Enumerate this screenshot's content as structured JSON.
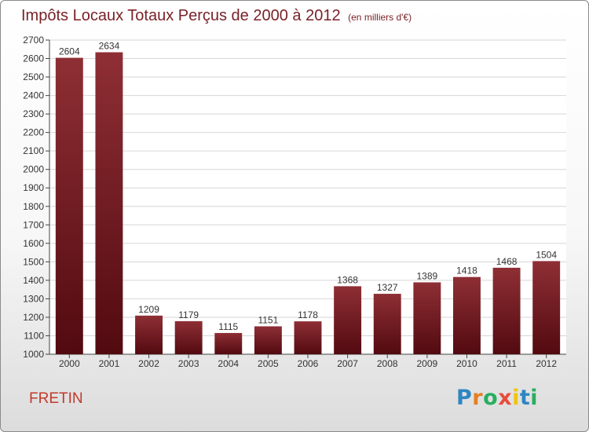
{
  "title": "Impôts Locaux Totaux Perçus de 2000 à 2012",
  "title_unit": "(en milliers d'€)",
  "city": "FRETIN",
  "logo": {
    "letters": [
      "P",
      "r",
      "o",
      "x",
      "i",
      "t",
      "i"
    ],
    "colors": [
      "#2e86c1",
      "#e67e22",
      "#27ae60",
      "#e74c3c",
      "#f1c40f",
      "#2e86c1",
      "#27ae60"
    ]
  },
  "colors": {
    "bar_top": "#8e2f35",
    "bar_bottom": "#520a10",
    "title": "#7a2228",
    "city": "#c0392b"
  },
  "chart_data": {
    "type": "bar",
    "title": "Impôts Locaux Totaux Perçus de 2000 à 2012",
    "xlabel": "",
    "ylabel": "en milliers d'€",
    "categories": [
      "2000",
      "2001",
      "2002",
      "2003",
      "2004",
      "2005",
      "2006",
      "2007",
      "2008",
      "2009",
      "2010",
      "2011",
      "2012"
    ],
    "values": [
      2604,
      2634,
      1209,
      1179,
      1115,
      1151,
      1178,
      1368,
      1327,
      1389,
      1418,
      1468,
      1504
    ],
    "ylim": [
      1000,
      2700
    ],
    "yticks": [
      1000,
      1100,
      1200,
      1300,
      1400,
      1500,
      1600,
      1700,
      1800,
      1900,
      2000,
      2100,
      2200,
      2300,
      2400,
      2500,
      2600,
      2700
    ],
    "grid": true
  }
}
